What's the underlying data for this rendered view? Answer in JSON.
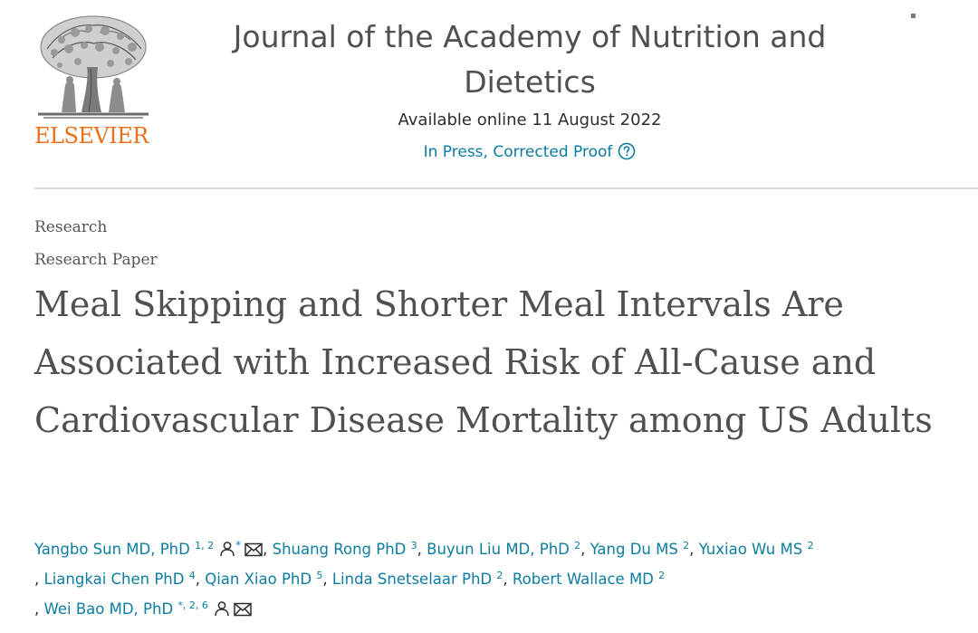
{
  "header": {
    "publisher_logo_text": "ELSEVIER",
    "journal_title_line1": "Journal of the Academy of Nutrition and",
    "journal_title_line2": "Dietetics",
    "available_online": "Available online 11 August 2022",
    "status": "In Press, Corrected Proof",
    "help_icon": "question-circle-icon"
  },
  "article": {
    "section": "Research",
    "article_type": "Research Paper",
    "title": "Meal Skipping and Shorter Meal Intervals Are Associated with Increased Risk of All-Cause and Cardiovascular Disease Mortality among US Adults"
  },
  "authors": [
    {
      "name": "Yangbo Sun MD, PhD",
      "affil": "1, 2",
      "corresponding": true,
      "email": true
    },
    {
      "name": "Shuang Rong PhD",
      "affil": "3"
    },
    {
      "name": "Buyun Liu MD, PhD",
      "affil": "2"
    },
    {
      "name": "Yang Du MS",
      "affil": "2"
    },
    {
      "name": "Yuxiao Wu MS",
      "affil": "2"
    },
    {
      "name": "Liangkai Chen PhD",
      "affil": "4"
    },
    {
      "name": "Qian Xiao PhD",
      "affil": "5"
    },
    {
      "name": "Linda Snetselaar PhD",
      "affil": "2"
    },
    {
      "name": "Robert Wallace MD",
      "affil": "2"
    },
    {
      "name": "Wei Bao MD, PhD",
      "affil": "*, 2, 6",
      "email": true,
      "person": true
    }
  ],
  "symbols": {
    "corresponding_mark": "*",
    "separator": ", ",
    "leading_separator": ", "
  },
  "colors": {
    "link": "#0c7da0",
    "elsevier_orange": "#e9711c",
    "text": "#2e2e2e",
    "title": "#505050"
  }
}
